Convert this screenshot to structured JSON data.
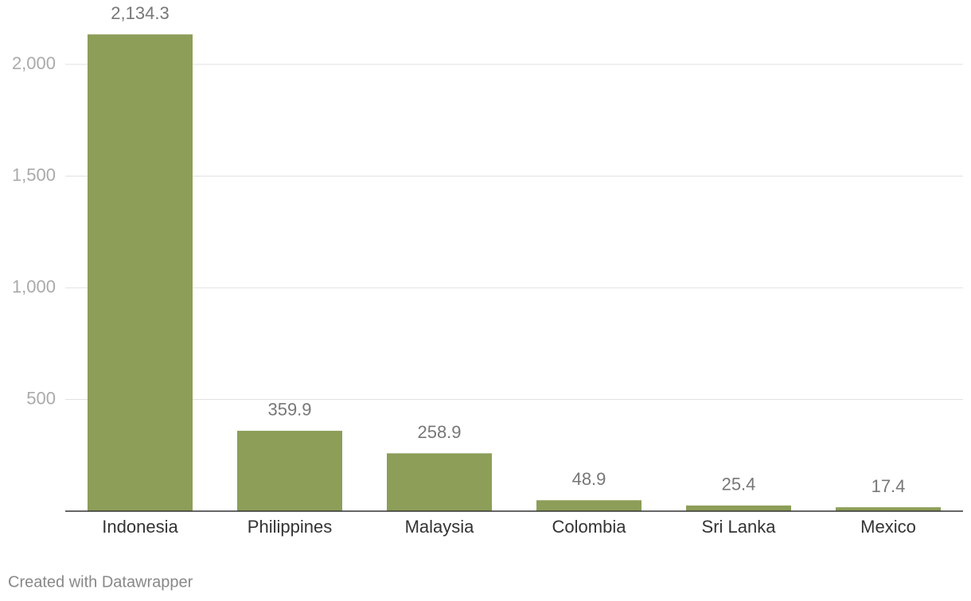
{
  "chart_data": {
    "type": "bar",
    "categories": [
      "Indonesia",
      "Philippines",
      "Malaysia",
      "Colombia",
      "Sri Lanka",
      "Mexico"
    ],
    "values": [
      2134.3,
      359.9,
      258.9,
      48.9,
      25.4,
      17.4
    ],
    "value_labels": [
      "2,134.3",
      "359.9",
      "258.9",
      "48.9",
      "25.4",
      "17.4"
    ],
    "color": "#8c9e58",
    "ylim": [
      0,
      2200
    ],
    "yticks": [
      500,
      {
        "value": 1000,
        "label": "1,000"
      },
      {
        "value": 1500,
        "label": "1,500"
      },
      {
        "value": 2000,
        "label": "2,000"
      }
    ],
    "grid": true,
    "credit": "Created with Datawrapper"
  }
}
